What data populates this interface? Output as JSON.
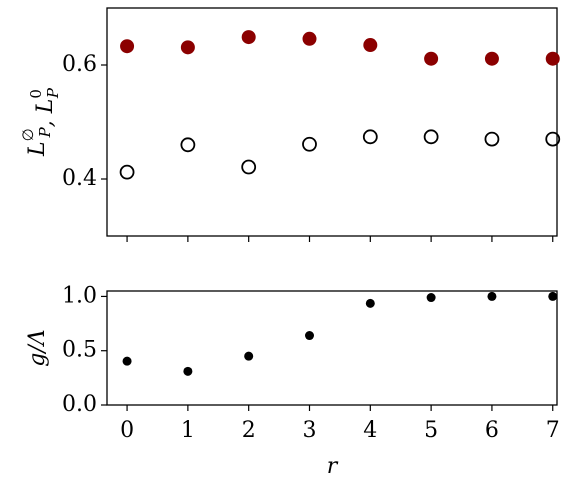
{
  "chart_data": [
    {
      "type": "scatter",
      "ylabel": "L_P^∅, L_P^0",
      "x": [
        0,
        1,
        2,
        3,
        4,
        5,
        6,
        7
      ],
      "xlim": [
        -0.33,
        7.07
      ],
      "xticks": [
        0,
        1,
        2,
        3,
        4,
        5,
        6,
        7
      ],
      "xticklabels": false,
      "ylim": [
        0.3,
        0.7
      ],
      "yticks": [
        0.4,
        0.6
      ],
      "series": [
        {
          "color": "#8b0000",
          "filled": true,
          "size": 7,
          "values": [
            0.633,
            0.631,
            0.649,
            0.646,
            0.635,
            0.611,
            0.611,
            0.611
          ]
        },
        {
          "color": "#000000",
          "filled": false,
          "size": 6.5,
          "values": [
            0.412,
            0.46,
            0.421,
            0.461,
            0.474,
            0.474,
            0.47,
            0.47
          ]
        }
      ]
    },
    {
      "type": "scatter",
      "ylabel": "g/Λ",
      "xlabel": "r",
      "x": [
        0,
        1,
        2,
        3,
        4,
        5,
        6,
        7
      ],
      "xlim": [
        -0.33,
        7.07
      ],
      "xticks": [
        0,
        1,
        2,
        3,
        4,
        5,
        6,
        7
      ],
      "xticklabels": true,
      "ylim": [
        0,
        1.05
      ],
      "yticks": [
        {
          "value": 0,
          "label": "0.0"
        },
        0.5,
        {
          "value": 1,
          "label": "1.0"
        }
      ],
      "series": [
        {
          "color": "#000000",
          "filled": true,
          "size": 4.5,
          "values": [
            0.404,
            0.31,
            0.45,
            0.64,
            0.936,
            0.99,
            1.0,
            1.0
          ]
        }
      ]
    }
  ]
}
